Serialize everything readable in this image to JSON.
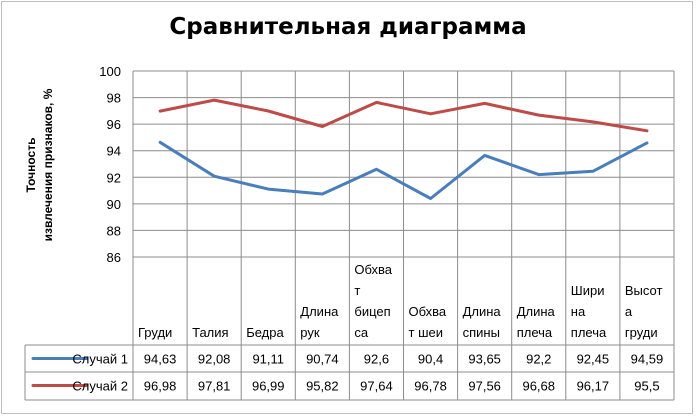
{
  "chart_data": {
    "type": "line",
    "title": "Сравнительная диаграмма",
    "ylabel_lines": [
      "Точность",
      "извлечения признаков, %"
    ],
    "ylim": [
      86,
      100
    ],
    "yticks": [
      86,
      88,
      90,
      92,
      94,
      96,
      98,
      100
    ],
    "grid": true,
    "categories": [
      [
        "Груди"
      ],
      [
        "Талия"
      ],
      [
        "Бедра"
      ],
      [
        "Длина",
        "рук"
      ],
      [
        "Обхва",
        "т",
        "бицеп",
        "са"
      ],
      [
        "Обхва",
        "т шеи"
      ],
      [
        "Длина",
        "спины"
      ],
      [
        "Длина",
        "плеча"
      ],
      [
        "Шири",
        "на",
        "плеча"
      ],
      [
        "Высот",
        "а",
        "груди"
      ]
    ],
    "series": [
      {
        "name": "Случай 1",
        "color": "#4a7ebb",
        "values": [
          94.63,
          92.08,
          91.11,
          90.74,
          92.6,
          90.4,
          93.65,
          92.2,
          92.45,
          94.59
        ],
        "labels": [
          "94,63",
          "92,08",
          "91,11",
          "90,74",
          "92,6",
          "90,4",
          "93,65",
          "92,2",
          "92,45",
          "94,59"
        ]
      },
      {
        "name": "Случай 2",
        "color": "#be4b48",
        "values": [
          96.98,
          97.81,
          96.99,
          95.82,
          97.64,
          96.78,
          97.56,
          96.68,
          96.17,
          95.5
        ],
        "labels": [
          "96,98",
          "97,81",
          "96,99",
          "95,82",
          "97,64",
          "96,78",
          "97,56",
          "96,68",
          "96,17",
          "95,5"
        ]
      }
    ]
  }
}
